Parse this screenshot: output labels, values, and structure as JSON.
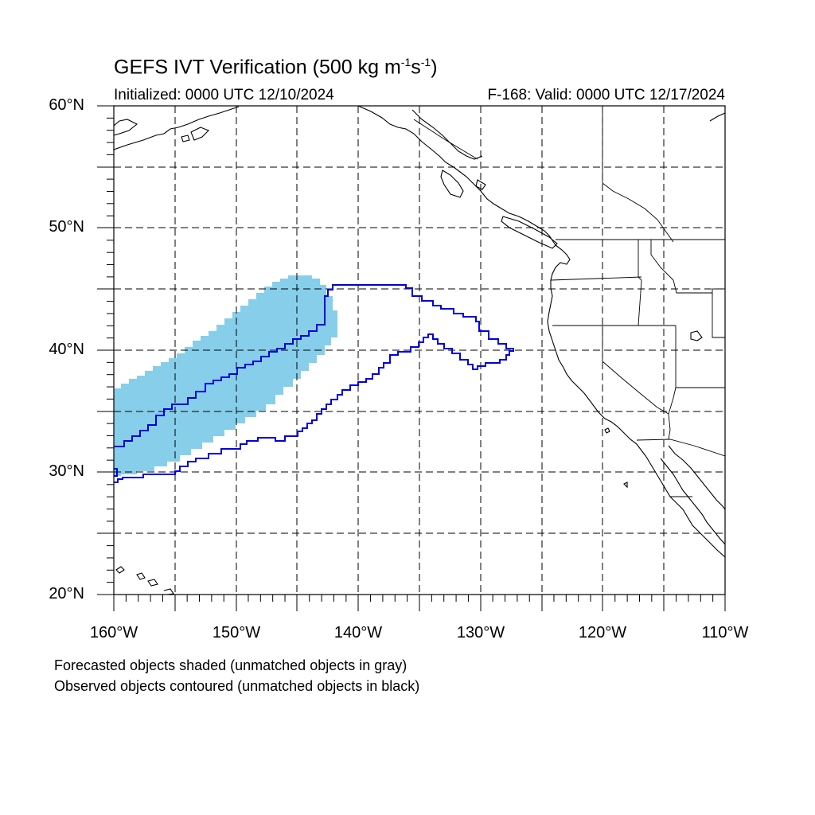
{
  "title": {
    "main": "GEFS IVT Verification (500 kg m",
    "exp1": "-1",
    "mid": "s",
    "exp2": "-1",
    "end": ")"
  },
  "subtitle_left": "Initialized: 0000 UTC 12/10/2024",
  "subtitle_right": "F-168: Valid: 0000 UTC 12/17/2024",
  "lat_labels": [
    "60°N",
    "50°N",
    "40°N",
    "30°N",
    "20°N"
  ],
  "lon_labels": [
    "160°W",
    "150°W",
    "140°W",
    "130°W",
    "120°W",
    "110°W"
  ],
  "caption_line1": "Forecasted objects shaded (unmatched objects in gray)",
  "caption_line2": "Observed objects contoured (unmatched objects in black)",
  "colors": {
    "forecast_fill": "#87ceeb",
    "observed_contour": "#0000e0",
    "coastline": "#000000",
    "grid": "#000000"
  },
  "map": {
    "projection": "cylindrical equidistant",
    "lon_range": [
      -160,
      -110
    ],
    "lat_range": [
      20,
      60
    ],
    "grid": "dashed every 5 degrees"
  }
}
